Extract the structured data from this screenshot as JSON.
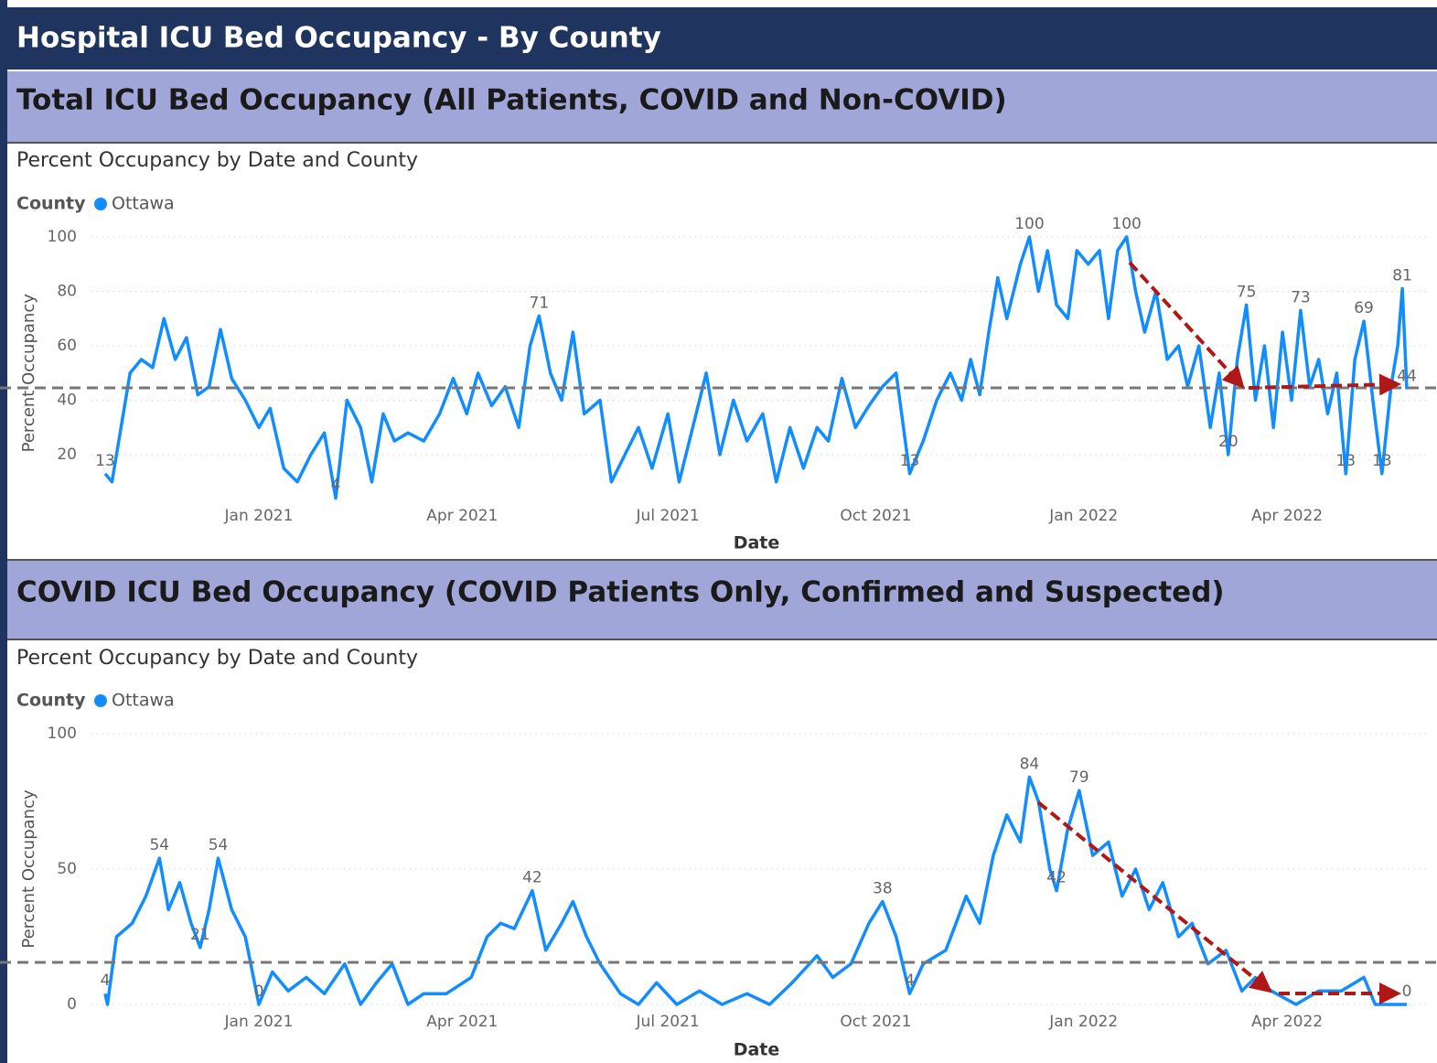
{
  "header": {
    "title": "Hospital ICU Bed Occupancy - By County"
  },
  "sections": [
    {
      "heading": "Total ICU Bed Occupancy (All Patients, COVID and Non-COVID)"
    },
    {
      "heading": "COVID ICU Bed Occupancy (COVID Patients Only, Confirmed and Suspected)"
    }
  ],
  "chart_data": [
    {
      "type": "line",
      "title": "Percent Occupancy by Date and County",
      "legend_title": "County",
      "x_label": "Date",
      "y_label": "Percent Occupancy",
      "xlim": [
        "2020-10-25",
        "2022-05-24"
      ],
      "xticks": [
        {
          "value": "2021-01-01",
          "label": "Jan 2021"
        },
        {
          "value": "2021-04-01",
          "label": "Apr 2021"
        },
        {
          "value": "2021-07-01",
          "label": "Jul 2021"
        },
        {
          "value": "2021-10-01",
          "label": "Oct 2021"
        },
        {
          "value": "2022-01-01",
          "label": "Jan 2022"
        },
        {
          "value": "2022-04-01",
          "label": "Apr 2022"
        }
      ],
      "ylim": [
        0,
        100
      ],
      "yticks": [
        20,
        40,
        60,
        80,
        100
      ],
      "grid": true,
      "x": [
        "2020-10-25",
        "2020-10-28",
        "2020-11-01",
        "2020-11-05",
        "2020-11-10",
        "2020-11-15",
        "2020-11-20",
        "2020-11-25",
        "2020-11-30",
        "2020-12-05",
        "2020-12-10",
        "2020-12-15",
        "2020-12-20",
        "2020-12-26",
        "2021-01-01",
        "2021-01-06",
        "2021-01-12",
        "2021-01-18",
        "2021-01-24",
        "2021-01-30",
        "2021-02-04",
        "2021-02-09",
        "2021-02-15",
        "2021-02-20",
        "2021-02-25",
        "2021-03-02",
        "2021-03-08",
        "2021-03-15",
        "2021-03-22",
        "2021-03-28",
        "2021-04-03",
        "2021-04-08",
        "2021-04-14",
        "2021-04-20",
        "2021-04-26",
        "2021-05-01",
        "2021-05-05",
        "2021-05-10",
        "2021-05-15",
        "2021-05-20",
        "2021-05-25",
        "2021-06-01",
        "2021-06-06",
        "2021-06-12",
        "2021-06-18",
        "2021-06-24",
        "2021-07-01",
        "2021-07-06",
        "2021-07-12",
        "2021-07-18",
        "2021-07-24",
        "2021-07-30",
        "2021-08-05",
        "2021-08-12",
        "2021-08-18",
        "2021-08-24",
        "2021-08-30",
        "2021-09-05",
        "2021-09-10",
        "2021-09-16",
        "2021-09-22",
        "2021-09-28",
        "2021-10-04",
        "2021-10-10",
        "2021-10-16",
        "2021-10-22",
        "2021-10-28",
        "2021-11-03",
        "2021-11-08",
        "2021-11-12",
        "2021-11-16",
        "2021-11-20",
        "2021-11-24",
        "2021-11-28",
        "2021-12-04",
        "2021-12-08",
        "2021-12-12",
        "2021-12-16",
        "2021-12-20",
        "2021-12-25",
        "2021-12-29",
        "2022-01-03",
        "2022-01-08",
        "2022-01-12",
        "2022-01-16",
        "2022-01-20",
        "2022-01-24",
        "2022-01-28",
        "2022-02-02",
        "2022-02-07",
        "2022-02-12",
        "2022-02-16",
        "2022-02-21",
        "2022-02-26",
        "2022-03-02",
        "2022-03-06",
        "2022-03-10",
        "2022-03-14",
        "2022-03-18",
        "2022-03-22",
        "2022-03-26",
        "2022-03-30",
        "2022-04-03",
        "2022-04-07",
        "2022-04-11",
        "2022-04-15",
        "2022-04-19",
        "2022-04-23",
        "2022-04-27",
        "2022-05-01",
        "2022-05-05",
        "2022-05-09",
        "2022-05-13",
        "2022-05-17",
        "2022-05-20",
        "2022-05-22",
        "2022-05-24"
      ],
      "series": [
        {
          "name": "Ottawa",
          "color": "#118dff",
          "values": [
            13,
            10,
            30,
            50,
            55,
            52,
            70,
            55,
            63,
            42,
            45,
            66,
            48,
            40,
            30,
            37,
            15,
            10,
            20,
            28,
            4,
            40,
            30,
            10,
            35,
            25,
            28,
            25,
            35,
            48,
            35,
            50,
            38,
            45,
            30,
            60,
            71,
            50,
            40,
            65,
            35,
            40,
            10,
            20,
            30,
            15,
            35,
            10,
            30,
            50,
            20,
            40,
            25,
            35,
            10,
            30,
            15,
            30,
            25,
            48,
            30,
            38,
            45,
            50,
            13,
            25,
            40,
            50,
            40,
            55,
            42,
            65,
            85,
            70,
            90,
            100,
            80,
            95,
            75,
            70,
            95,
            90,
            95,
            70,
            95,
            100,
            80,
            65,
            80,
            55,
            60,
            45,
            60,
            30,
            50,
            20,
            55,
            75,
            40,
            60,
            30,
            65,
            40,
            73,
            45,
            55,
            35,
            50,
            13,
            55,
            69,
            40,
            13,
            45,
            60,
            81,
            44
          ],
          "value_labels": [
            "13",
            null,
            null,
            null,
            null,
            null,
            null,
            null,
            null,
            null,
            null,
            null,
            null,
            null,
            null,
            null,
            null,
            null,
            null,
            null,
            "4",
            null,
            null,
            null,
            null,
            null,
            null,
            null,
            null,
            null,
            null,
            null,
            null,
            null,
            null,
            null,
            "71",
            null,
            null,
            null,
            null,
            null,
            null,
            null,
            null,
            null,
            null,
            null,
            null,
            null,
            null,
            null,
            null,
            null,
            null,
            null,
            null,
            null,
            null,
            null,
            null,
            null,
            null,
            null,
            "13",
            null,
            null,
            null,
            null,
            null,
            null,
            null,
            null,
            null,
            null,
            "100",
            null,
            null,
            null,
            null,
            null,
            null,
            null,
            null,
            null,
            "100",
            null,
            null,
            null,
            null,
            null,
            null,
            null,
            null,
            null,
            "20",
            null,
            "75",
            null,
            null,
            null,
            null,
            null,
            "73",
            null,
            null,
            null,
            null,
            "13",
            null,
            "69",
            null,
            "13",
            null,
            null,
            "81",
            "44"
          ]
        }
      ]
    },
    {
      "type": "line",
      "title": "Percent Occupancy by Date and County",
      "legend_title": "County",
      "x_label": "Date",
      "y_label": "Percent Occupancy",
      "xlim": [
        "2020-10-25",
        "2022-05-24"
      ],
      "xticks": [
        {
          "value": "2021-01-01",
          "label": "Jan 2021"
        },
        {
          "value": "2021-04-01",
          "label": "Apr 2021"
        },
        {
          "value": "2021-07-01",
          "label": "Jul 2021"
        },
        {
          "value": "2021-10-01",
          "label": "Oct 2021"
        },
        {
          "value": "2022-01-01",
          "label": "Jan 2022"
        },
        {
          "value": "2022-04-01",
          "label": "Apr 2022"
        }
      ],
      "ylim": [
        0,
        100
      ],
      "yticks": [
        0,
        50,
        100
      ],
      "grid": true,
      "x": [
        "2020-10-25",
        "2020-10-26",
        "2020-10-30",
        "2020-11-06",
        "2020-11-12",
        "2020-11-18",
        "2020-11-22",
        "2020-11-27",
        "2020-12-02",
        "2020-12-06",
        "2020-12-10",
        "2020-12-14",
        "2020-12-20",
        "2020-12-26",
        "2021-01-01",
        "2021-01-07",
        "2021-01-14",
        "2021-01-22",
        "2021-01-30",
        "2021-02-08",
        "2021-02-15",
        "2021-02-22",
        "2021-03-01",
        "2021-03-08",
        "2021-03-15",
        "2021-03-25",
        "2021-04-05",
        "2021-04-12",
        "2021-04-18",
        "2021-04-24",
        "2021-05-02",
        "2021-05-08",
        "2021-05-15",
        "2021-05-20",
        "2021-05-26",
        "2021-06-01",
        "2021-06-10",
        "2021-06-18",
        "2021-06-26",
        "2021-07-05",
        "2021-07-15",
        "2021-07-25",
        "2021-08-05",
        "2021-08-15",
        "2021-08-25",
        "2021-09-05",
        "2021-09-12",
        "2021-09-20",
        "2021-09-28",
        "2021-10-04",
        "2021-10-10",
        "2021-10-16",
        "2021-10-22",
        "2021-11-01",
        "2021-11-10",
        "2021-11-16",
        "2021-11-22",
        "2021-11-28",
        "2021-12-04",
        "2021-12-08",
        "2021-12-12",
        "2021-12-17",
        "2021-12-20",
        "2021-12-25",
        "2021-12-30",
        "2022-01-05",
        "2022-01-12",
        "2022-01-18",
        "2022-01-24",
        "2022-01-30",
        "2022-02-05",
        "2022-02-12",
        "2022-02-18",
        "2022-02-25",
        "2022-03-05",
        "2022-03-12",
        "2022-03-18",
        "2022-03-25",
        "2022-04-05",
        "2022-04-15",
        "2022-04-25",
        "2022-05-05",
        "2022-05-10",
        "2022-05-24"
      ],
      "series": [
        {
          "name": "Ottawa",
          "color": "#118dff",
          "values": [
            4,
            0,
            25,
            30,
            40,
            54,
            35,
            45,
            30,
            21,
            35,
            54,
            35,
            25,
            0,
            12,
            5,
            10,
            4,
            15,
            0,
            8,
            15,
            0,
            4,
            4,
            10,
            25,
            30,
            28,
            42,
            20,
            30,
            38,
            25,
            15,
            4,
            0,
            8,
            0,
            5,
            0,
            4,
            0,
            8,
            18,
            10,
            15,
            30,
            38,
            25,
            4,
            15,
            20,
            40,
            30,
            55,
            70,
            60,
            84,
            75,
            50,
            42,
            65,
            79,
            55,
            60,
            40,
            50,
            35,
            45,
            25,
            30,
            15,
            20,
            5,
            10,
            5,
            0,
            5,
            5,
            10,
            0,
            0
          ],
          "value_labels": [
            "4",
            null,
            null,
            null,
            null,
            "54",
            null,
            null,
            null,
            "21",
            null,
            "54",
            null,
            null,
            "0",
            null,
            null,
            null,
            null,
            null,
            null,
            null,
            null,
            null,
            null,
            null,
            null,
            null,
            null,
            null,
            "42",
            null,
            null,
            null,
            null,
            null,
            null,
            null,
            null,
            null,
            null,
            null,
            null,
            null,
            null,
            null,
            null,
            null,
            null,
            "38",
            null,
            "4",
            null,
            null,
            null,
            null,
            null,
            null,
            null,
            "84",
            null,
            null,
            "42",
            null,
            "79",
            null,
            null,
            null,
            null,
            null,
            null,
            null,
            null,
            null,
            null,
            null,
            null,
            null,
            null,
            null,
            null,
            null,
            null,
            "0"
          ]
        }
      ]
    }
  ]
}
